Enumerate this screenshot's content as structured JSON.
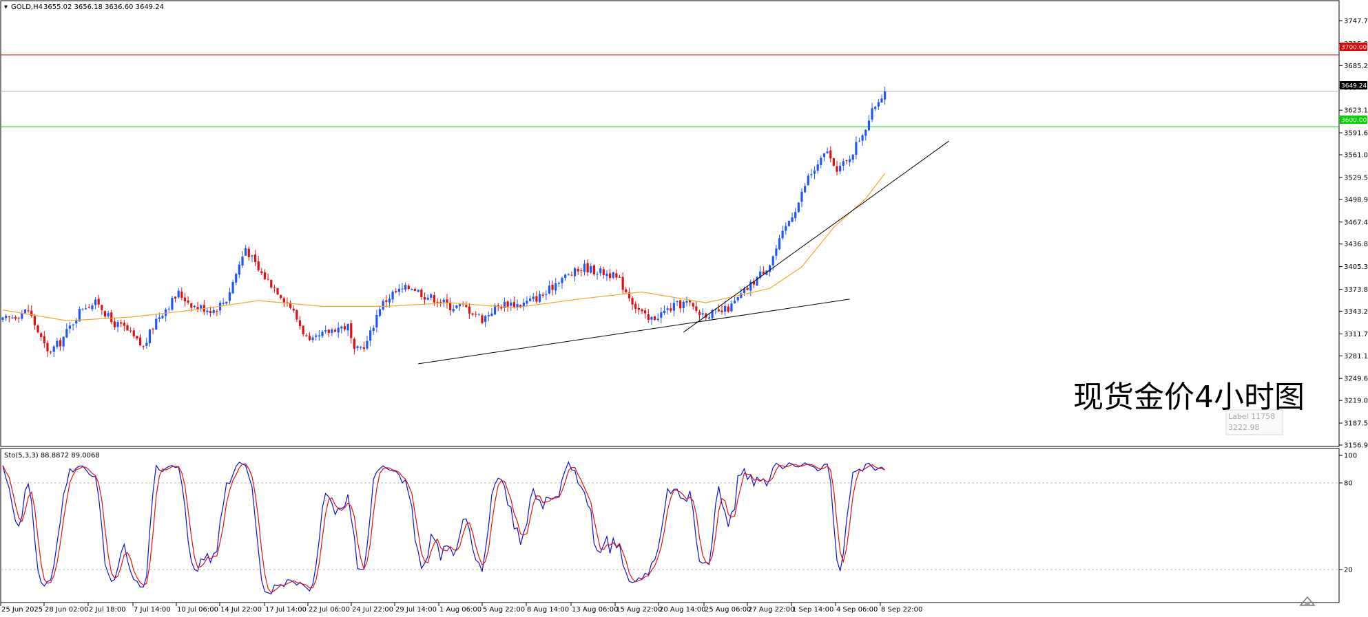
{
  "header": {
    "symbol": "GOLD,H4",
    "ohlc": "3655.02 3656.18 3636.60 3649.24",
    "stoch_label": "Sto(5,3,3) 88.8872 89.0068"
  },
  "overlay_title": "现货金价4小时图",
  "label_box": {
    "name": "Label 11758",
    "value": "3222.98"
  },
  "colors": {
    "bull": "#1f57ff",
    "bear": "#e01010",
    "ma": "#f5a623",
    "resistance": "#e00000",
    "support": "#00d000",
    "trend": "#000000",
    "stoch_main": "#1010d0",
    "stoch_signal": "#e01010"
  },
  "chart_data": {
    "type": "candlestick",
    "price_axis": {
      "range": [
        3156.9,
        3765.0
      ],
      "ticks": [
        "3747.70",
        "3715.80",
        "3685.20",
        "3654.70",
        "3623.10",
        "3591.60",
        "3561.00",
        "3529.50",
        "3498.90",
        "3467.40",
        "3436.80",
        "3405.30",
        "3373.80",
        "3343.20",
        "3311.70",
        "3281.10",
        "3249.60",
        "3219.00",
        "3187.50",
        "3156.90"
      ]
    },
    "time_axis": {
      "ticks": [
        "25 Jun 2025",
        "28 Jun 02:00",
        "2 Jul 18:00",
        "7 Jul 14:00",
        "10 Jul 06:00",
        "14 Jul 22:00",
        "17 Jul 14:00",
        "22 Jul 06:00",
        "24 Jul 22:00",
        "29 Jul 14:00",
        "1 Aug 06:00",
        "5 Aug 22:00",
        "8 Aug 14:00",
        "13 Aug 06:00",
        "15 Aug 22:00",
        "20 Aug 14:00",
        "25 Aug 06:00",
        "27 Aug 22:00",
        "1 Sep 14:00",
        "4 Sep 06:00",
        "8 Sep 22:00"
      ]
    },
    "price_path": [
      [
        0,
        3330
      ],
      [
        8,
        3345
      ],
      [
        14,
        3285
      ],
      [
        18,
        3300
      ],
      [
        25,
        3350
      ],
      [
        30,
        3355
      ],
      [
        34,
        3328
      ],
      [
        38,
        3320
      ],
      [
        44,
        3292
      ],
      [
        48,
        3332
      ],
      [
        55,
        3368
      ],
      [
        60,
        3350
      ],
      [
        66,
        3345
      ],
      [
        70,
        3360
      ],
      [
        76,
        3432
      ],
      [
        80,
        3400
      ],
      [
        86,
        3372
      ],
      [
        90,
        3350
      ],
      [
        96,
        3298
      ],
      [
        100,
        3310
      ],
      [
        104,
        3320
      ],
      [
        108,
        3322
      ],
      [
        110,
        3285
      ],
      [
        114,
        3300
      ],
      [
        118,
        3350
      ],
      [
        122,
        3368
      ],
      [
        128,
        3378
      ],
      [
        132,
        3365
      ],
      [
        136,
        3360
      ],
      [
        140,
        3350
      ],
      [
        144,
        3350
      ],
      [
        148,
        3340
      ],
      [
        150,
        3332
      ],
      [
        154,
        3348
      ],
      [
        158,
        3355
      ],
      [
        162,
        3352
      ],
      [
        166,
        3360
      ],
      [
        170,
        3368
      ],
      [
        174,
        3388
      ],
      [
        178,
        3395
      ],
      [
        182,
        3405
      ],
      [
        185,
        3400
      ],
      [
        190,
        3395
      ],
      [
        193,
        3385
      ],
      [
        196,
        3365
      ],
      [
        198,
        3350
      ],
      [
        202,
        3330
      ],
      [
        206,
        3340
      ],
      [
        210,
        3350
      ],
      [
        214,
        3355
      ],
      [
        218,
        3340
      ],
      [
        224,
        3340
      ],
      [
        228,
        3350
      ],
      [
        232,
        3370
      ],
      [
        236,
        3390
      ],
      [
        240,
        3410
      ],
      [
        243,
        3440
      ],
      [
        246,
        3470
      ],
      [
        249,
        3495
      ],
      [
        252,
        3530
      ],
      [
        255,
        3545
      ],
      [
        258,
        3568
      ],
      [
        260,
        3540
      ],
      [
        264,
        3550
      ],
      [
        267,
        3575
      ],
      [
        270,
        3600
      ],
      [
        273,
        3630
      ],
      [
        276,
        3652
      ]
    ],
    "last_close": 3649.24,
    "resistance_level": 3700.0,
    "support_level": 3600.0,
    "current_price_label": "3649.24",
    "resistance_label": "3700.00",
    "support_label": "3600.00",
    "ma_path": [
      [
        0,
        3345
      ],
      [
        20,
        3330
      ],
      [
        40,
        3335
      ],
      [
        60,
        3345
      ],
      [
        80,
        3358
      ],
      [
        100,
        3350
      ],
      [
        120,
        3350
      ],
      [
        140,
        3355
      ],
      [
        160,
        3348
      ],
      [
        180,
        3360
      ],
      [
        200,
        3370
      ],
      [
        220,
        3355
      ],
      [
        240,
        3375
      ],
      [
        250,
        3405
      ],
      [
        260,
        3460
      ],
      [
        270,
        3500
      ],
      [
        276,
        3535
      ]
    ],
    "trendlines": [
      {
        "from": [
          130,
          3270
        ],
        "to": [
          265,
          3360
        ]
      },
      {
        "from": [
          213,
          3314
        ],
        "to": [
          296,
          3580
        ]
      }
    ],
    "stochastic": {
      "range": [
        0,
        100
      ],
      "levels": [
        80,
        20
      ],
      "level_labels": [
        "100",
        "80",
        "20"
      ],
      "last_main": 88.8872,
      "last_signal": 89.0068
    }
  }
}
